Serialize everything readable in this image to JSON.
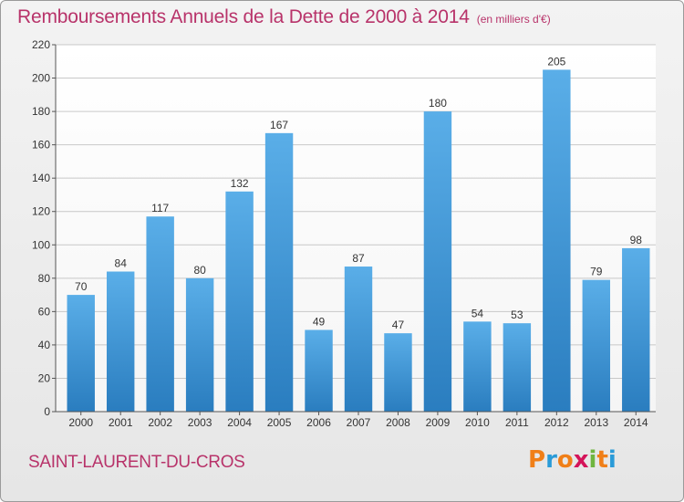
{
  "header": {
    "title": "Remboursements Annuels de la Dette de 2000 à 2014",
    "subtitle": "(en milliers d'€)"
  },
  "footer": {
    "commune": "SAINT-LAURENT-DU-CROS",
    "brand_letters": [
      "P",
      "r",
      "o",
      "x",
      "i",
      "t",
      "i"
    ],
    "brand_colors": [
      "#f07f18",
      "#2a9bd8",
      "#f07f18",
      "#d4145a",
      "#6fb53f",
      "#f07f18",
      "#2a9bd8"
    ]
  },
  "chart_data": {
    "type": "bar",
    "title": "Remboursements Annuels de la Dette de 2000 à 2014",
    "subtitle": "(en milliers d'€)",
    "categories": [
      "2000",
      "2001",
      "2002",
      "2003",
      "2004",
      "2005",
      "2006",
      "2007",
      "2008",
      "2009",
      "2010",
      "2011",
      "2012",
      "2013",
      "2014"
    ],
    "values": [
      70,
      84,
      117,
      80,
      132,
      167,
      49,
      87,
      47,
      180,
      54,
      53,
      205,
      79,
      98
    ],
    "data_labels": [
      "70",
      "84",
      "117",
      "80",
      "132",
      "167",
      "49",
      "87",
      "47",
      "180",
      "54",
      "53",
      "205",
      "79",
      "98"
    ],
    "ylim": [
      0,
      220
    ],
    "yticks": [
      0,
      20,
      40,
      60,
      80,
      100,
      120,
      140,
      160,
      180,
      200,
      220
    ],
    "grid": true,
    "bar_color_top": "#5aaee8",
    "bar_color_bottom": "#2a7dbf"
  }
}
